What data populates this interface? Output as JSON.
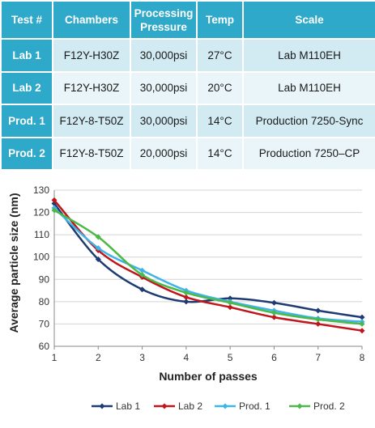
{
  "table": {
    "headers": [
      "Test #",
      "Chambers",
      "Processing Pressure",
      "Temp",
      "Scale"
    ],
    "rows": [
      [
        "Lab 1",
        "F12Y-H30Z",
        "30,000psi",
        "27°C",
        "Lab M110EH"
      ],
      [
        "Lab 2",
        "F12Y-H30Z",
        "30,000psi",
        "20°C",
        "Lab M110EH"
      ],
      [
        "Prod. 1",
        "F12Y-8-T50Z",
        "30,000psi",
        "14°C",
        "Production 7250-Sync"
      ],
      [
        "Prod. 2",
        "F12Y-8-T50Z",
        "20,000psi",
        "14°C",
        "Production 7250–CP"
      ]
    ]
  },
  "chart_data": {
    "type": "line",
    "x": [
      1,
      2,
      3,
      4,
      5,
      6,
      7,
      8
    ],
    "xlabel": "Number of passes",
    "ylabel": "Average particle size (nm)",
    "xlim": [
      1,
      8
    ],
    "ylim": [
      60,
      130
    ],
    "yticks": [
      60,
      70,
      80,
      90,
      100,
      110,
      120,
      130
    ],
    "grid": "horizontal",
    "legend_position": "bottom",
    "series": [
      {
        "name": "Lab 1",
        "color": "#1f3b73",
        "marker": "diamond",
        "values": [
          124,
          99,
          85.5,
          80,
          81.5,
          79.5,
          76,
          73
        ]
      },
      {
        "name": "Lab 2",
        "color": "#c0151b",
        "marker": "diamond",
        "values": [
          125.5,
          103,
          91,
          82,
          77.5,
          73,
          70,
          67
        ]
      },
      {
        "name": "Prod. 1",
        "color": "#3fb4ea",
        "marker": "diamond",
        "values": [
          122,
          104,
          94,
          85,
          80,
          76,
          72.5,
          71
        ]
      },
      {
        "name": "Prod. 2",
        "color": "#4cb848",
        "marker": "diamond",
        "values": [
          121,
          109,
          92,
          84,
          79.5,
          75,
          72,
          70
        ]
      }
    ]
  }
}
